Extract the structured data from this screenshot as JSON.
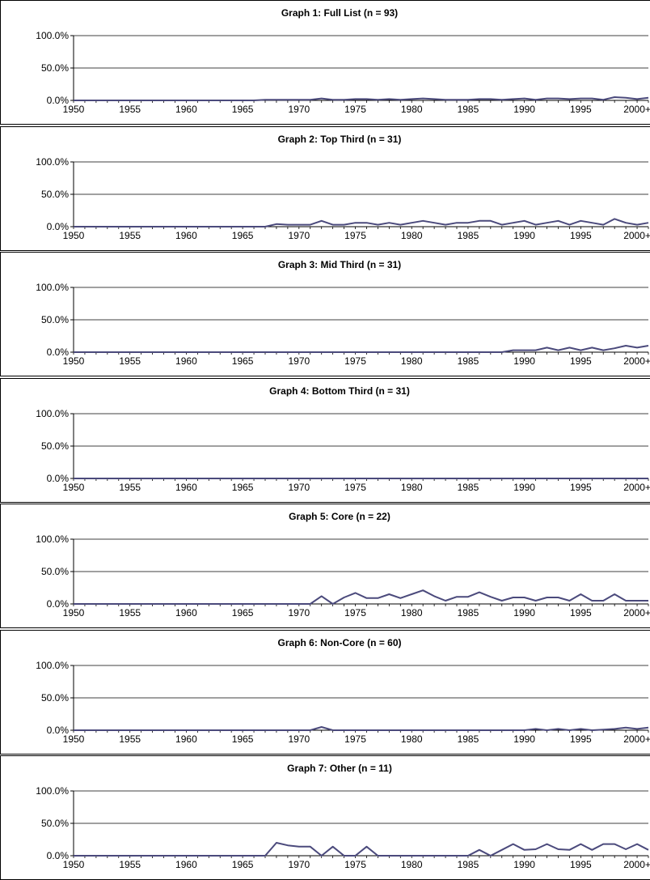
{
  "x_tick_labels": [
    "1950",
    "1955",
    "1960",
    "1965",
    "1970",
    "1975",
    "1980",
    "1985",
    "1990",
    "1995",
    "2000+"
  ],
  "y_tick_labels": [
    "100.0%",
    "50.0%",
    "0.0%"
  ],
  "colors": {
    "line": "#4b4a7c",
    "axis": "#000000",
    "grid": "#000000",
    "background": "#ffffff"
  },
  "chart_data": [
    {
      "type": "line",
      "title": "Graph 1: Full List (n = 93)",
      "xlabel": "",
      "ylabel": "",
      "ylim": [
        0,
        100
      ],
      "grid": "horizontal major gridlines at 50% and 100%",
      "legend": "none",
      "x_start": 1950,
      "x_step": 1,
      "values": [
        0,
        0,
        0,
        0,
        0,
        0,
        0,
        0,
        0,
        0,
        0,
        0,
        0,
        0,
        0,
        0,
        0,
        1,
        1,
        1,
        1,
        1,
        3,
        1,
        1,
        2,
        2,
        1,
        2,
        1,
        2,
        3,
        2,
        1,
        1,
        1,
        2,
        2,
        1,
        2,
        3,
        1,
        3,
        3,
        2,
        3,
        3,
        1,
        5,
        4,
        2,
        4
      ]
    },
    {
      "type": "line",
      "title": "Graph 2: Top Third (n = 31)",
      "xlabel": "",
      "ylabel": "",
      "ylim": [
        0,
        100
      ],
      "grid": "horizontal major gridlines at 50% and 100%",
      "legend": "none",
      "x_start": 1950,
      "x_step": 1,
      "values": [
        0,
        0,
        0,
        0,
        0,
        0,
        0,
        0,
        0,
        0,
        0,
        0,
        0,
        0,
        0,
        0,
        0,
        0,
        4,
        3,
        3,
        3,
        9,
        3,
        3,
        6,
        6,
        3,
        6,
        3,
        6,
        9,
        6,
        3,
        6,
        6,
        9,
        9,
        3,
        6,
        9,
        3,
        6,
        9,
        3,
        9,
        6,
        3,
        12,
        6,
        3,
        6
      ]
    },
    {
      "type": "line",
      "title": "Graph 3: Mid Third (n = 31)",
      "xlabel": "",
      "ylabel": "",
      "ylim": [
        0,
        100
      ],
      "grid": "horizontal major gridlines at 50% and 100%",
      "legend": "none",
      "x_start": 1950,
      "x_step": 1,
      "values": [
        0,
        0,
        0,
        0,
        0,
        0,
        0,
        0,
        0,
        0,
        0,
        0,
        0,
        0,
        0,
        0,
        0,
        0,
        0,
        0,
        0,
        0,
        0,
        0,
        0,
        0,
        0,
        0,
        0,
        0,
        0,
        0,
        0,
        0,
        0,
        0,
        0,
        0,
        0,
        3,
        3,
        3,
        7,
        3,
        7,
        3,
        7,
        3,
        6,
        10,
        7,
        10
      ]
    },
    {
      "type": "line",
      "title": "Graph 4: Bottom Third (n = 31)",
      "xlabel": "",
      "ylabel": "",
      "ylim": [
        0,
        100
      ],
      "grid": "horizontal major gridlines at 50% and 100%",
      "legend": "none",
      "x_start": 1950,
      "x_step": 1,
      "values": [
        0,
        0,
        0,
        0,
        0,
        0,
        0,
        0,
        0,
        0,
        0,
        0,
        0,
        0,
        0,
        0,
        0,
        0,
        0,
        0,
        0,
        0,
        0,
        0,
        0,
        0,
        0,
        0,
        0,
        0,
        0,
        0,
        0,
        0,
        0,
        0,
        0,
        0,
        0,
        0,
        0,
        0,
        0,
        0,
        0,
        0,
        0,
        0,
        0,
        0,
        0,
        0
      ]
    },
    {
      "type": "line",
      "title": "Graph 5: Core (n = 22)",
      "xlabel": "",
      "ylabel": "",
      "ylim": [
        0,
        100
      ],
      "grid": "horizontal major gridlines at 50% and 100%",
      "legend": "none",
      "x_start": 1950,
      "x_step": 1,
      "values": [
        0,
        0,
        0,
        0,
        0,
        0,
        0,
        0,
        0,
        0,
        0,
        0,
        0,
        0,
        0,
        0,
        0,
        0,
        0,
        0,
        0,
        0,
        12,
        0,
        10,
        17,
        9,
        9,
        15,
        9,
        15,
        21,
        12,
        5,
        11,
        11,
        18,
        11,
        5,
        10,
        10,
        5,
        10,
        10,
        5,
        15,
        5,
        5,
        15,
        5,
        5,
        5
      ]
    },
    {
      "type": "line",
      "title": "Graph 6: Non-Core (n = 60)",
      "xlabel": "",
      "ylabel": "",
      "ylim": [
        0,
        100
      ],
      "grid": "horizontal major gridlines at 50% and 100%",
      "legend": "none",
      "x_start": 1950,
      "x_step": 1,
      "values": [
        0,
        0,
        0,
        0,
        0,
        0,
        0,
        0,
        0,
        0,
        0,
        0,
        0,
        0,
        0,
        0,
        0,
        0,
        0,
        0,
        0,
        0,
        5,
        0,
        0,
        0,
        0,
        0,
        0,
        0,
        0,
        0,
        0,
        0,
        0,
        0,
        0,
        0,
        0,
        0,
        0,
        2,
        0,
        2,
        0,
        2,
        0,
        1,
        2,
        4,
        2,
        4
      ]
    },
    {
      "type": "line",
      "title": "Graph 7: Other (n = 11)",
      "xlabel": "",
      "ylabel": "",
      "ylim": [
        0,
        100
      ],
      "grid": "horizontal major gridlines at 50% and 100%",
      "legend": "none",
      "x_start": 1950,
      "x_step": 1,
      "values": [
        0,
        0,
        0,
        0,
        0,
        0,
        0,
        0,
        0,
        0,
        0,
        0,
        0,
        0,
        0,
        0,
        0,
        0,
        20,
        16,
        14,
        14,
        0,
        14,
        0,
        0,
        14,
        0,
        0,
        0,
        0,
        0,
        0,
        0,
        0,
        0,
        9,
        0,
        9,
        18,
        9,
        10,
        18,
        10,
        9,
        18,
        9,
        18,
        18,
        10,
        18,
        9
      ]
    }
  ]
}
